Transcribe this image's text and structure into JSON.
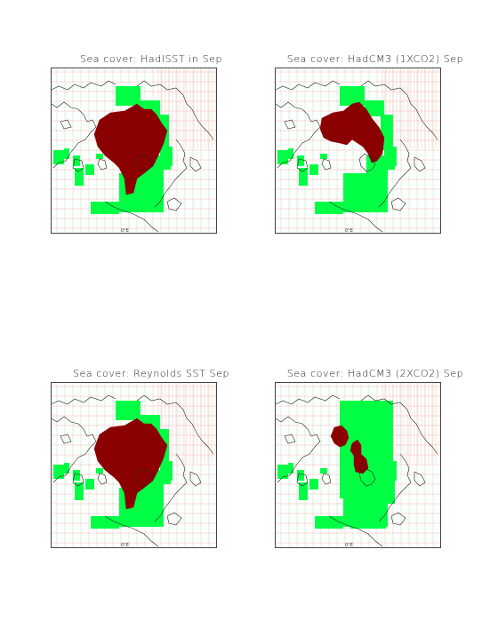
{
  "panels": [
    {
      "id": "hadisst-sep",
      "title": "Sea cover: HadISST in Sep",
      "ice_level": "full"
    },
    {
      "id": "hadcm3-1xco2-sep",
      "title": "Sea cover: HadCM3 (1XCO2) Sep",
      "ice_level": "medium"
    },
    {
      "id": "reynolds-sst-sep",
      "title": "Sea cover: Reynolds SST  Sep",
      "ice_level": "full"
    },
    {
      "id": "hadcm3-2xco2-sep",
      "title": "Sea cover: HadCM3 (2XCO2) Sep",
      "ice_level": "low"
    }
  ],
  "legend": {
    "ice_color": "#8b0000",
    "open_sea_color": "#00ff44",
    "grid_color_red": "#ff9090",
    "grid_color_green": "#8fe89f",
    "coastline_color": "#222222"
  },
  "bottom_tick": "0°E"
}
